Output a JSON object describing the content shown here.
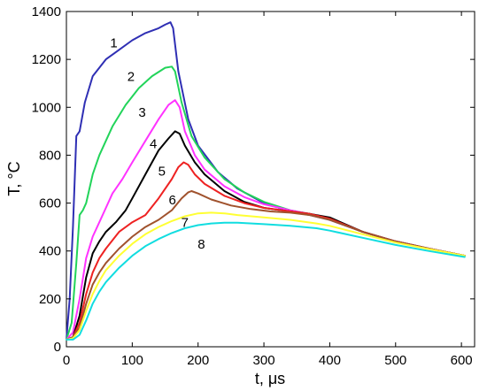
{
  "chart_data": {
    "type": "line",
    "title": "",
    "xlabel": "t, μs",
    "ylabel": "T, °C",
    "xlim": [
      0,
      620
    ],
    "ylim": [
      0,
      1400
    ],
    "xticks": [
      "0",
      "100",
      "200",
      "300",
      "400",
      "500",
      "600"
    ],
    "yticks": [
      "0",
      "200",
      "400",
      "600",
      "800",
      "1000",
      "1200",
      "1400"
    ],
    "grid": false,
    "legend": "none",
    "series": [
      {
        "name": "1",
        "color": "#2f2fb4",
        "x": [
          0,
          5,
          10,
          15,
          20,
          28,
          40,
          60,
          80,
          100,
          120,
          140,
          150,
          158,
          162,
          170,
          185,
          200,
          230,
          260,
          300,
          340,
          370,
          400,
          450,
          500,
          550,
          605
        ],
        "y": [
          30,
          200,
          500,
          880,
          900,
          1020,
          1130,
          1200,
          1240,
          1280,
          1310,
          1330,
          1345,
          1355,
          1330,
          1150,
          950,
          840,
          730,
          660,
          600,
          565,
          550,
          530,
          480,
          440,
          410,
          380
        ]
      },
      {
        "name": "2",
        "color": "#22d45a",
        "x": [
          0,
          8,
          15,
          20,
          25,
          30,
          40,
          50,
          70,
          90,
          110,
          130,
          150,
          160,
          165,
          175,
          190,
          210,
          240,
          270,
          300,
          340,
          370,
          400,
          450,
          500,
          550,
          605
        ],
        "y": [
          30,
          100,
          350,
          550,
          570,
          600,
          720,
          800,
          920,
          1010,
          1080,
          1130,
          1165,
          1170,
          1150,
          1020,
          880,
          790,
          700,
          645,
          605,
          570,
          555,
          535,
          480,
          440,
          410,
          380
        ]
      },
      {
        "name": "3",
        "color": "#ff33ff",
        "x": [
          0,
          10,
          20,
          30,
          40,
          50,
          60,
          70,
          85,
          100,
          120,
          140,
          155,
          165,
          172,
          180,
          195,
          210,
          240,
          270,
          300,
          340,
          370,
          400,
          450,
          500,
          550,
          605
        ],
        "y": [
          30,
          60,
          200,
          370,
          460,
          520,
          580,
          640,
          700,
          770,
          860,
          950,
          1010,
          1030,
          1000,
          900,
          800,
          740,
          670,
          625,
          595,
          570,
          555,
          535,
          480,
          440,
          410,
          380
        ]
      },
      {
        "name": "4",
        "color": "#000000",
        "x": [
          0,
          10,
          20,
          30,
          40,
          50,
          60,
          75,
          90,
          100,
          120,
          140,
          155,
          165,
          172,
          180,
          195,
          210,
          240,
          270,
          300,
          340,
          370,
          400,
          450,
          500,
          550,
          605
        ],
        "y": [
          30,
          40,
          130,
          290,
          390,
          440,
          480,
          520,
          570,
          620,
          720,
          820,
          870,
          900,
          890,
          840,
          770,
          720,
          650,
          605,
          580,
          565,
          555,
          540,
          480,
          440,
          410,
          380
        ]
      },
      {
        "name": "5",
        "color": "#ee2222",
        "x": [
          0,
          10,
          20,
          30,
          40,
          50,
          60,
          80,
          100,
          120,
          140,
          160,
          170,
          178,
          185,
          195,
          210,
          240,
          270,
          300,
          340,
          370,
          400,
          450,
          500,
          550,
          605
        ],
        "y": [
          30,
          40,
          100,
          220,
          310,
          370,
          410,
          480,
          520,
          550,
          620,
          700,
          750,
          770,
          760,
          720,
          680,
          630,
          600,
          580,
          565,
          555,
          535,
          480,
          440,
          410,
          380
        ]
      },
      {
        "name": "6",
        "color": "#a0522d",
        "x": [
          0,
          10,
          20,
          30,
          40,
          50,
          60,
          80,
          100,
          120,
          140,
          160,
          175,
          185,
          190,
          200,
          220,
          250,
          280,
          310,
          340,
          370,
          400,
          450,
          500,
          550,
          605
        ],
        "y": [
          30,
          40,
          80,
          180,
          260,
          310,
          350,
          410,
          460,
          500,
          530,
          570,
          620,
          645,
          650,
          640,
          615,
          590,
          575,
          565,
          560,
          550,
          530,
          480,
          440,
          410,
          380
        ]
      },
      {
        "name": "7",
        "color": "#ffff33",
        "x": [
          0,
          10,
          20,
          30,
          40,
          50,
          60,
          80,
          100,
          120,
          140,
          160,
          180,
          200,
          220,
          240,
          260,
          300,
          340,
          380,
          400,
          450,
          500,
          550,
          605
        ],
        "y": [
          30,
          35,
          70,
          150,
          220,
          275,
          320,
          380,
          430,
          470,
          500,
          525,
          545,
          557,
          560,
          557,
          550,
          540,
          530,
          515,
          505,
          470,
          435,
          408,
          380
        ]
      },
      {
        "name": "8",
        "color": "#11dde0",
        "x": [
          0,
          10,
          20,
          30,
          40,
          50,
          60,
          80,
          100,
          120,
          140,
          160,
          180,
          200,
          220,
          240,
          260,
          300,
          340,
          380,
          400,
          450,
          500,
          550,
          605
        ],
        "y": [
          30,
          30,
          50,
          110,
          180,
          230,
          270,
          330,
          380,
          420,
          450,
          475,
          495,
          508,
          515,
          518,
          518,
          512,
          505,
          495,
          485,
          455,
          425,
          400,
          375
        ]
      }
    ],
    "curve_labels": [
      {
        "text": "1",
        "x": 72,
        "y": 1250
      },
      {
        "text": "2",
        "x": 98,
        "y": 1110
      },
      {
        "text": "3",
        "x": 115,
        "y": 960
      },
      {
        "text": "4",
        "x": 132,
        "y": 830
      },
      {
        "text": "5",
        "x": 145,
        "y": 715
      },
      {
        "text": "6",
        "x": 161,
        "y": 595
      },
      {
        "text": "7",
        "x": 180,
        "y": 500
      },
      {
        "text": "8",
        "x": 205,
        "y": 410
      }
    ]
  }
}
